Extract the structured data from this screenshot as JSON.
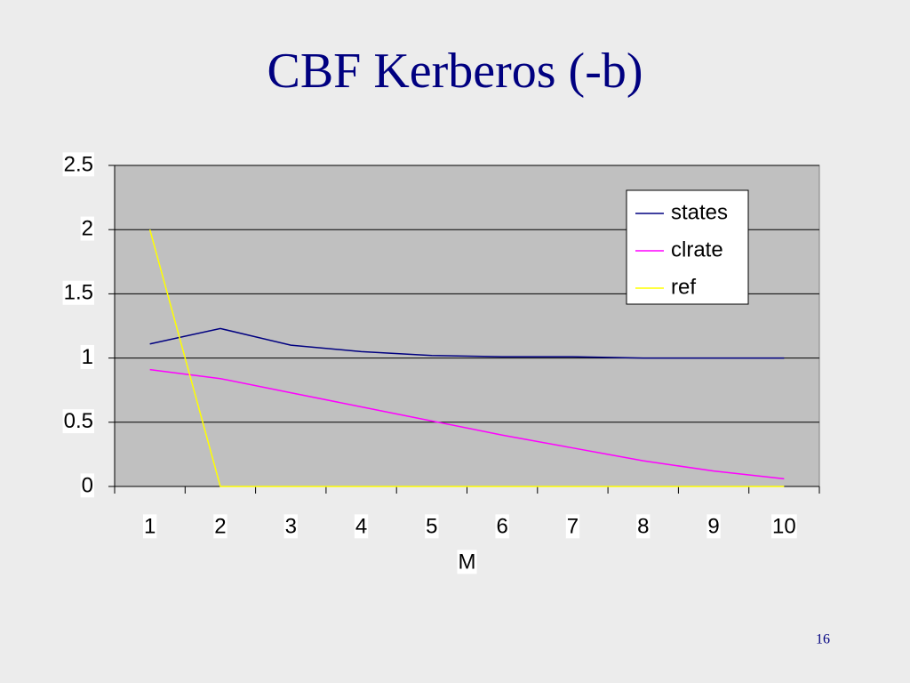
{
  "chart_data": {
    "type": "line",
    "title": "CBF Kerberos (-b)",
    "x_label": "M",
    "categories": [
      "1",
      "2",
      "3",
      "4",
      "5",
      "6",
      "7",
      "8",
      "9",
      "10"
    ],
    "series": [
      {
        "name": "states",
        "color": "#000080",
        "values": [
          1.11,
          1.23,
          1.1,
          1.05,
          1.02,
          1.01,
          1.01,
          1.0,
          1.0,
          1.0
        ]
      },
      {
        "name": "clrate",
        "color": "#ff00ff",
        "values": [
          0.91,
          0.84,
          0.73,
          0.62,
          0.51,
          0.4,
          0.3,
          0.2,
          0.12,
          0.06
        ]
      },
      {
        "name": "ref",
        "color": "#ffff00",
        "values": [
          2,
          0,
          0,
          0,
          0,
          0,
          0,
          0,
          0,
          0
        ]
      }
    ],
    "ylim": [
      0,
      2.5
    ],
    "yticks": [
      0,
      0.5,
      1,
      1.5,
      2,
      2.5
    ],
    "grid": true,
    "legend": "upper right"
  },
  "page_number": "16"
}
